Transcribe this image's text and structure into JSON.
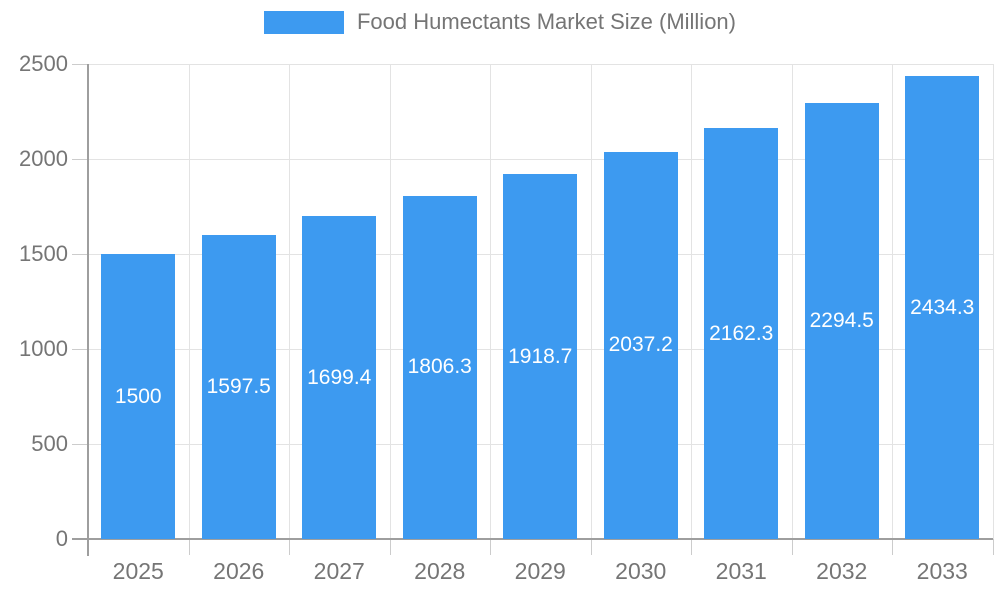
{
  "chart_data": {
    "type": "bar",
    "title": "Food Humectants Market Size (Million)",
    "categories": [
      "2025",
      "2026",
      "2027",
      "2028",
      "2029",
      "2030",
      "2031",
      "2032",
      "2033"
    ],
    "values": [
      1500,
      1597.5,
      1699.4,
      1806.3,
      1918.7,
      2037.2,
      2162.3,
      2294.5,
      2434.3
    ],
    "bar_labels": [
      "1500",
      "1597.5",
      "1699.4",
      "1806.3",
      "1918.7",
      "2037.2",
      "2162.3",
      "2294.5",
      "2434.3"
    ],
    "y_ticks": [
      0,
      500,
      1000,
      1500,
      2000,
      2500
    ],
    "y_tick_labels": [
      "0",
      "500",
      "1000",
      "1500",
      "2000",
      "2500"
    ],
    "ylim": [
      0,
      2500
    ],
    "xlabel": "",
    "ylabel": "",
    "legend_position": "top",
    "grid": true,
    "colors": {
      "bar": "#3D9AF0",
      "axis": "#9E9E9E",
      "gridline": "#E3E3E3",
      "tick": "#CCCCCC",
      "tick_label": "#757575",
      "bar_label": "#FFFFFF",
      "background": "#FFFFFF"
    }
  }
}
